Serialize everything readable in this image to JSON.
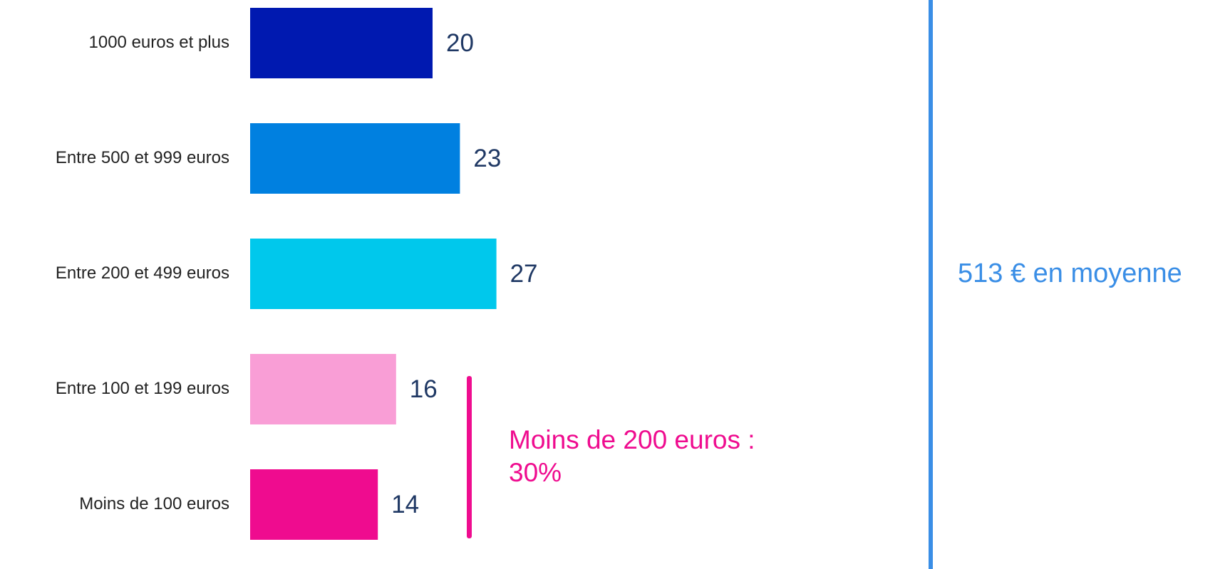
{
  "chart_data": {
    "type": "bar",
    "orientation": "horizontal",
    "categories": [
      "1000 euros et plus",
      "Entre 500 et 999 euros",
      "Entre 200 et 499 euros",
      "Entre 100 et 199 euros",
      "Moins de 100 euros"
    ],
    "values": [
      20,
      23,
      27,
      16,
      14
    ],
    "colors": [
      "#0019b0",
      "#0080e0",
      "#00c8ec",
      "#f99ed6",
      "#ef0c8f"
    ],
    "annotation_lines": [
      "Moins de 200 euros :",
      "30%"
    ],
    "side_note": "513 € en moyenne"
  }
}
